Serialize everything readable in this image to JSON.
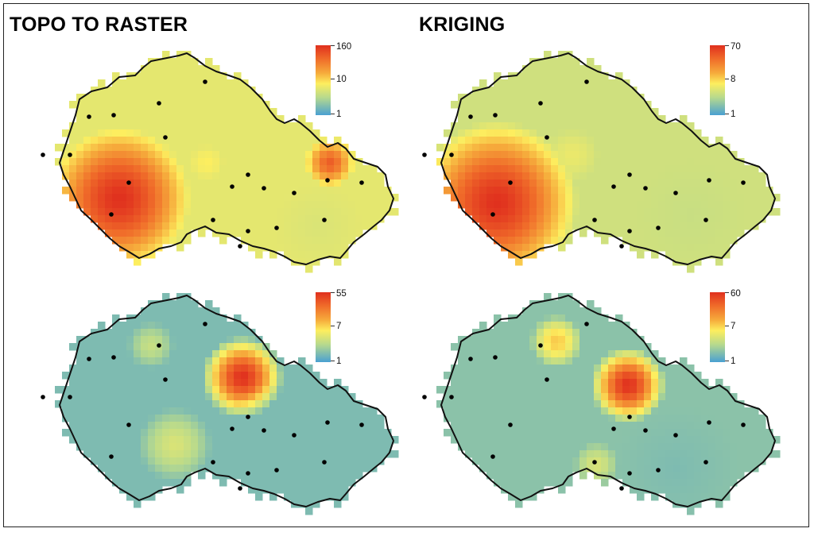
{
  "titles": {
    "left": "TOPO TO RASTER",
    "right": "KRIGING"
  },
  "colors": {
    "high": "#e0301e",
    "mid": "#fdee5f",
    "low": "#4aa0d2",
    "border": "#111111",
    "station": "#000000"
  },
  "panels": [
    {
      "id": "tl",
      "legend": {
        "max": "160",
        "mid": "10",
        "min": "1"
      }
    },
    {
      "id": "tr",
      "legend": {
        "max": "70",
        "mid": "8",
        "min": "1"
      }
    },
    {
      "id": "bl",
      "legend": {
        "max": "55",
        "mid": "7",
        "min": "1"
      }
    },
    {
      "id": "br",
      "legend": {
        "max": "60",
        "mid": "7",
        "min": "1"
      }
    }
  ]
}
